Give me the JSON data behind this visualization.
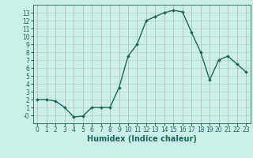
{
  "x": [
    0,
    1,
    2,
    3,
    4,
    5,
    6,
    7,
    8,
    9,
    10,
    11,
    12,
    13,
    14,
    15,
    16,
    17,
    18,
    19,
    20,
    21,
    22,
    23
  ],
  "y": [
    2,
    2,
    1.8,
    1,
    -0.2,
    -0.1,
    1,
    1,
    1,
    3.5,
    7.5,
    9,
    12,
    12.5,
    13,
    13.3,
    13.1,
    10.5,
    8,
    4.5,
    7,
    7.5,
    6.5,
    5.5
  ],
  "line_color": "#1a6b5a",
  "marker": "D",
  "marker_size": 2,
  "bg_color": "#cceee8",
  "grid_v_color": "#c8a8a8",
  "grid_h_color": "#aad4cc",
  "xlabel": "Humidex (Indice chaleur)",
  "ylim": [
    -1,
    14
  ],
  "xlim": [
    -0.5,
    23.5
  ],
  "yticks": [
    0,
    1,
    2,
    3,
    4,
    5,
    6,
    7,
    8,
    9,
    10,
    11,
    12,
    13
  ],
  "xticks": [
    0,
    1,
    2,
    3,
    4,
    5,
    6,
    7,
    8,
    9,
    10,
    11,
    12,
    13,
    14,
    15,
    16,
    17,
    18,
    19,
    20,
    21,
    22,
    23
  ],
  "tick_label_fontsize": 5.5,
  "xlabel_fontsize": 7,
  "line_width": 1.0
}
